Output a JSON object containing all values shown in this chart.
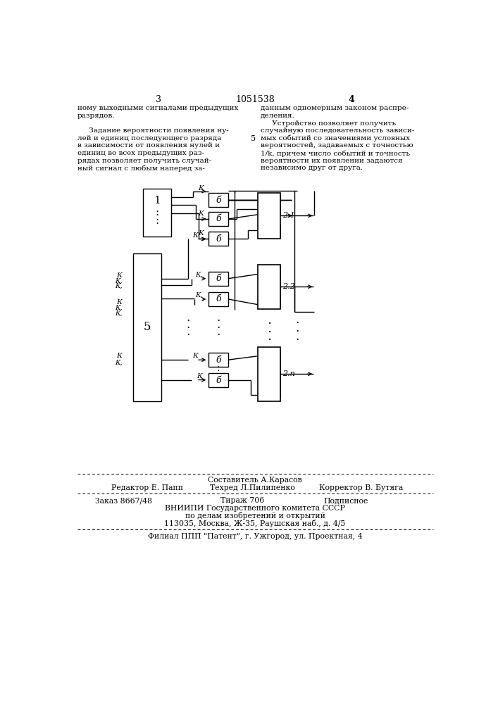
{
  "page_color": "#ffffff",
  "title_number": "1051538",
  "page_left": "3",
  "page_right": "4",
  "text_left": [
    "ному выходными сигналами предыдущих",
    "разрядов.",
    "",
    "     Задание вероятности появления ну-",
    "лей и единиц последующего разряда",
    "в зависимости от появления нулей и",
    "единиц во всех предыдущих раз-",
    "рядах позволяет получить случай-",
    "ный сигнал с любым наперед за-"
  ],
  "text_right": [
    "данным одномерным законом распре-",
    "деления.",
    "     Устройство позволяет получить",
    "случайную последовательность зависи-",
    "мых событий со значениями условных",
    "вероятностей, задаваемых с точностью",
    "1/k, причем число событий и точность",
    "вероятности их появлении задаются",
    "независимо друг от друга."
  ],
  "center_num": "5",
  "footer_line1_center": "Составитель А.Карасов",
  "footer_line1_left": "Редактор Е. Папп",
  "footer_line2_center": "Техред Л.Пилипенко",
  "footer_line2_right": "Корректор В. Бутяга",
  "footer_order": "Заказ 8667/48",
  "footer_tirazh": "Тираж 706",
  "footer_podp": "Подписное",
  "footer_org1": "ВНИИПИ Государственного комитета СССР",
  "footer_org2": "по делам изобретений и открытий",
  "footer_org3": "113035, Москва, Ж-35, Раушская наб., д. 4/5",
  "footer_branch": "Филиал ППП \"Патент\", г. Ужгород, ул. Проектная, 4"
}
